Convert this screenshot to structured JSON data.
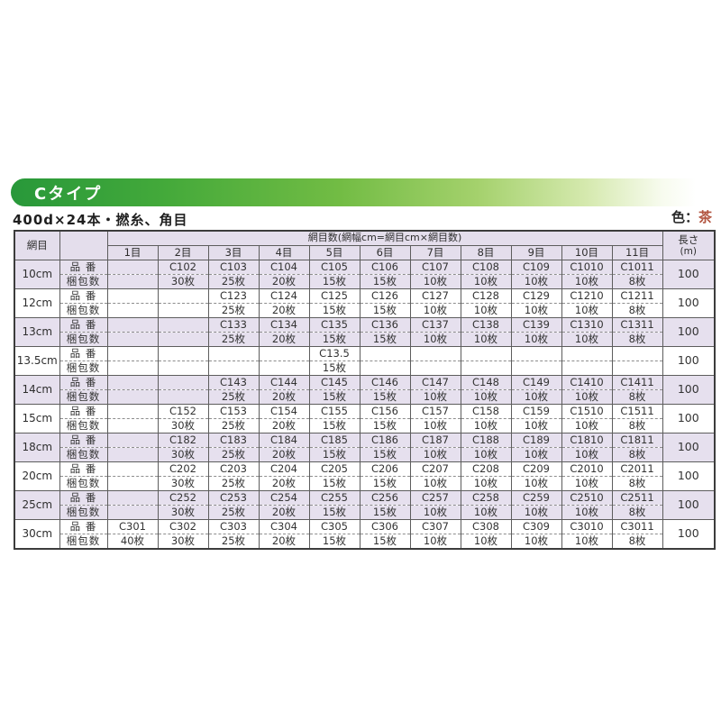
{
  "banner": {
    "label": "Cタイプ"
  },
  "subtitle": "400d×24本・撚糸、角目",
  "color_note": {
    "label": "色：",
    "value": "茶"
  },
  "colors": {
    "banner_green": "#2f9e3a",
    "row_shade": "#e6e0ee",
    "header_shade": "#e4deec",
    "color_value_text": "#b2543f"
  },
  "table": {
    "corner_header": "網目",
    "span_header": "網目数(網幅cm=網目cm×網目数)",
    "mesh_col_headers": [
      "1目",
      "2目",
      "3目",
      "4目",
      "5目",
      "6目",
      "7目",
      "8目",
      "9目",
      "10目",
      "11目"
    ],
    "length_header": "長さ",
    "length_unit": "(m)",
    "row_label_hinban": "品 番",
    "row_label_konpo": "梱包数",
    "rows": [
      {
        "mesh": "10cm",
        "hinban": [
          "",
          "C102",
          "C103",
          "C104",
          "C105",
          "C106",
          "C107",
          "C108",
          "C109",
          "C1010",
          "C1011"
        ],
        "konpo": [
          "",
          "30枚",
          "25枚",
          "20枚",
          "15枚",
          "15枚",
          "10枚",
          "10枚",
          "10枚",
          "10枚",
          "8枚"
        ],
        "length": "100",
        "shaded": true
      },
      {
        "mesh": "12cm",
        "hinban": [
          "",
          "",
          "C123",
          "C124",
          "C125",
          "C126",
          "C127",
          "C128",
          "C129",
          "C1210",
          "C1211"
        ],
        "konpo": [
          "",
          "",
          "25枚",
          "20枚",
          "15枚",
          "15枚",
          "10枚",
          "10枚",
          "10枚",
          "10枚",
          "8枚"
        ],
        "length": "100",
        "shaded": false
      },
      {
        "mesh": "13cm",
        "hinban": [
          "",
          "",
          "C133",
          "C134",
          "C135",
          "C136",
          "C137",
          "C138",
          "C139",
          "C1310",
          "C1311"
        ],
        "konpo": [
          "",
          "",
          "25枚",
          "20枚",
          "15枚",
          "15枚",
          "10枚",
          "10枚",
          "10枚",
          "10枚",
          "8枚"
        ],
        "length": "100",
        "shaded": true
      },
      {
        "mesh": "13.5cm",
        "hinban": [
          "",
          "",
          "",
          "",
          "C13.5",
          "",
          "",
          "",
          "",
          "",
          ""
        ],
        "konpo": [
          "",
          "",
          "",
          "",
          "15枚",
          "",
          "",
          "",
          "",
          "",
          ""
        ],
        "length": "100",
        "shaded": false
      },
      {
        "mesh": "14cm",
        "hinban": [
          "",
          "",
          "C143",
          "C144",
          "C145",
          "C146",
          "C147",
          "C148",
          "C149",
          "C1410",
          "C1411"
        ],
        "konpo": [
          "",
          "",
          "25枚",
          "20枚",
          "15枚",
          "15枚",
          "10枚",
          "10枚",
          "10枚",
          "10枚",
          "8枚"
        ],
        "length": "100",
        "shaded": true
      },
      {
        "mesh": "15cm",
        "hinban": [
          "",
          "C152",
          "C153",
          "C154",
          "C155",
          "C156",
          "C157",
          "C158",
          "C159",
          "C1510",
          "C1511"
        ],
        "konpo": [
          "",
          "30枚",
          "25枚",
          "20枚",
          "15枚",
          "15枚",
          "10枚",
          "10枚",
          "10枚",
          "10枚",
          "8枚"
        ],
        "length": "100",
        "shaded": false
      },
      {
        "mesh": "18cm",
        "hinban": [
          "",
          "C182",
          "C183",
          "C184",
          "C185",
          "C186",
          "C187",
          "C188",
          "C189",
          "C1810",
          "C1811"
        ],
        "konpo": [
          "",
          "30枚",
          "25枚",
          "20枚",
          "15枚",
          "15枚",
          "10枚",
          "10枚",
          "10枚",
          "10枚",
          "8枚"
        ],
        "length": "100",
        "shaded": true
      },
      {
        "mesh": "20cm",
        "hinban": [
          "",
          "C202",
          "C203",
          "C204",
          "C205",
          "C206",
          "C207",
          "C208",
          "C209",
          "C2010",
          "C2011"
        ],
        "konpo": [
          "",
          "30枚",
          "25枚",
          "20枚",
          "15枚",
          "15枚",
          "10枚",
          "10枚",
          "10枚",
          "10枚",
          "8枚"
        ],
        "length": "100",
        "shaded": false
      },
      {
        "mesh": "25cm",
        "hinban": [
          "",
          "C252",
          "C253",
          "C254",
          "C255",
          "C256",
          "C257",
          "C258",
          "C259",
          "C2510",
          "C2511"
        ],
        "konpo": [
          "",
          "30枚",
          "25枚",
          "20枚",
          "15枚",
          "15枚",
          "10枚",
          "10枚",
          "10枚",
          "10枚",
          "8枚"
        ],
        "length": "100",
        "shaded": true
      },
      {
        "mesh": "30cm",
        "hinban": [
          "C301",
          "C302",
          "C303",
          "C304",
          "C305",
          "C306",
          "C307",
          "C308",
          "C309",
          "C3010",
          "C3011"
        ],
        "konpo": [
          "40枚",
          "30枚",
          "25枚",
          "20枚",
          "15枚",
          "15枚",
          "10枚",
          "10枚",
          "10枚",
          "10枚",
          "8枚"
        ],
        "length": "100",
        "shaded": false
      }
    ]
  }
}
